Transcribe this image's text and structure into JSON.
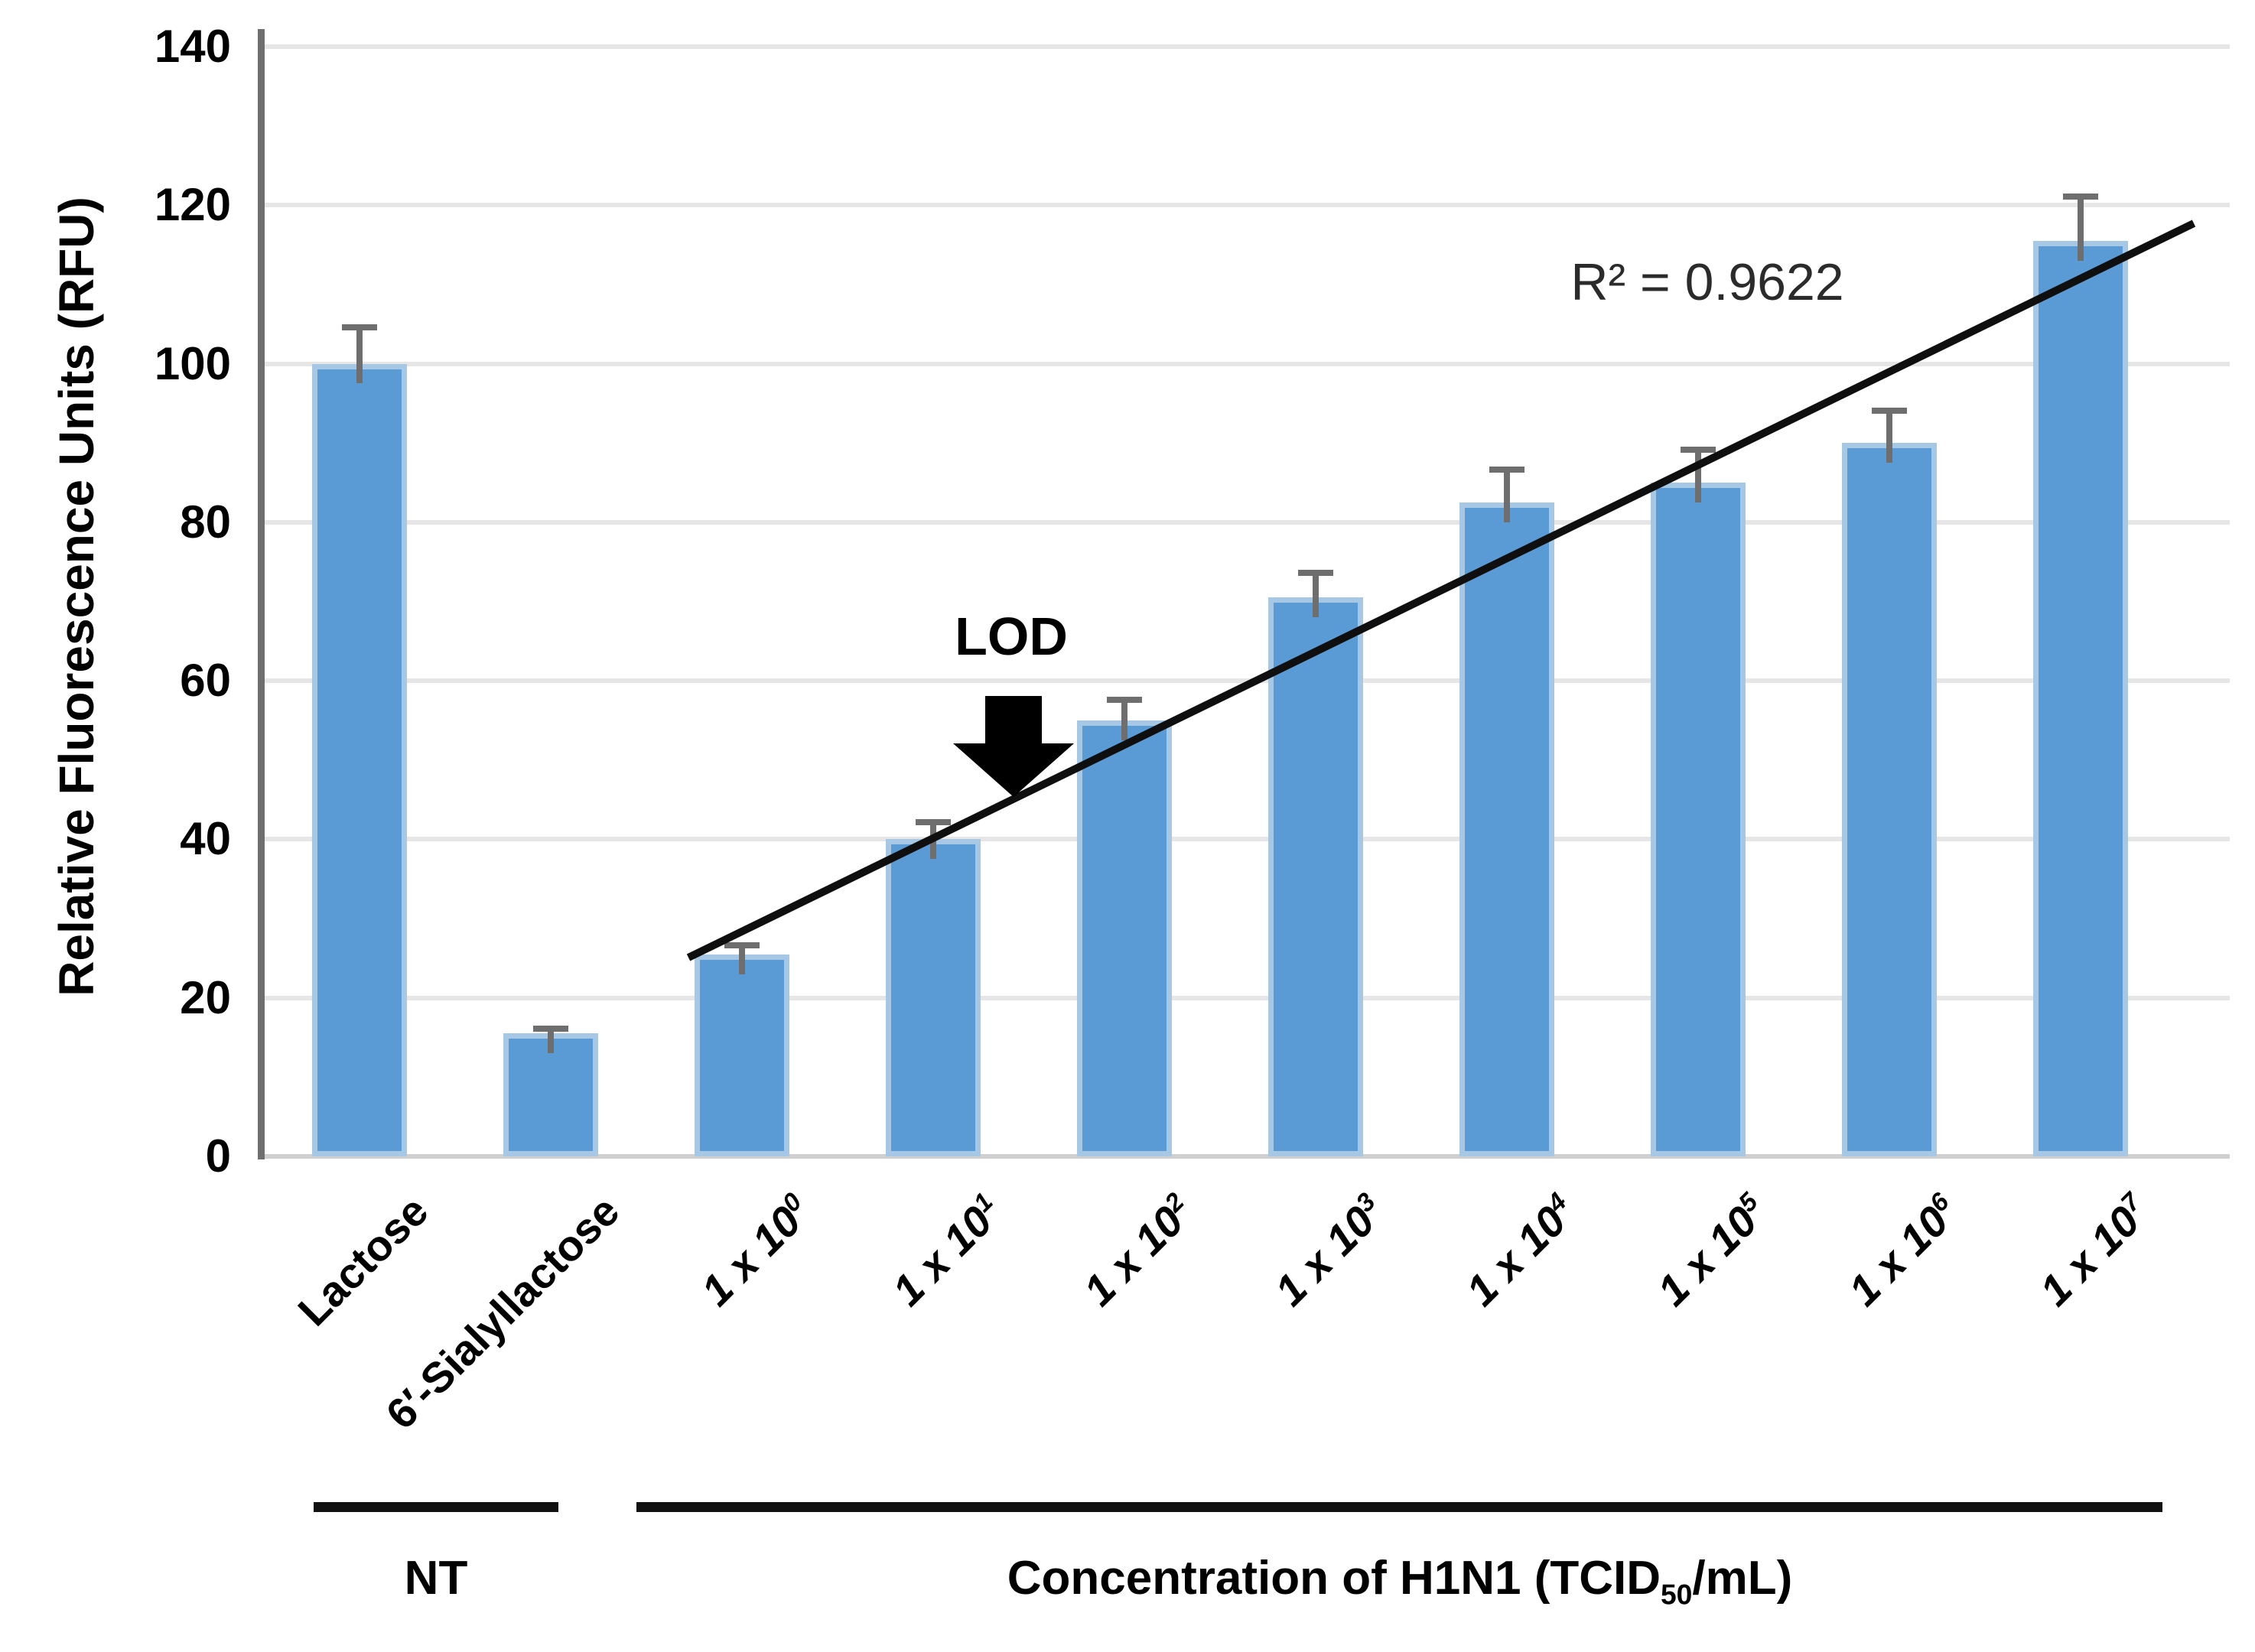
{
  "figure": {
    "background": "#ffffff"
  },
  "chart_data": {
    "type": "bar",
    "title": "",
    "ylabel": "Relative Fluorescence Units (RFU)",
    "xlabel_parts": {
      "pre": "Concentration of H1N1 (TCID",
      "sub": "50",
      "post": "/mL)"
    },
    "ylim": [
      0,
      140
    ],
    "ytick_step": 20,
    "grid": true,
    "legend": false,
    "bar_color": "#5b9bd5",
    "bar_edge_color": "#a6c8e4",
    "error_color": "#6e6e6e",
    "trendline_color": "#0f0f0f",
    "categories": [
      {
        "label": "Lactose",
        "sup": "",
        "italic": false
      },
      {
        "label": "6′-Sialyllactose",
        "sup": "",
        "italic": false
      },
      {
        "label": "1 x 10",
        "sup": "0",
        "italic": true
      },
      {
        "label": "1 x 10",
        "sup": "1",
        "italic": true
      },
      {
        "label": "1 x 10",
        "sup": "2",
        "italic": true
      },
      {
        "label": "1 x 10",
        "sup": "3",
        "italic": true
      },
      {
        "label": "1 x 10",
        "sup": "4",
        "italic": true
      },
      {
        "label": "1 x 10",
        "sup": "5",
        "italic": true
      },
      {
        "label": "1 x 10",
        "sup": "6",
        "italic": true
      },
      {
        "label": "1 x 10",
        "sup": "7",
        "italic": true
      }
    ],
    "values": [
      100,
      15.5,
      25.5,
      40,
      55,
      70.5,
      82.5,
      85,
      90,
      115.5
    ],
    "errors_plus": [
      5,
      1,
      1.5,
      2.5,
      3,
      3.5,
      4.5,
      4.5,
      4.5,
      6
    ],
    "groups": [
      {
        "label": "NT",
        "start": 0,
        "end": 1
      },
      {
        "label": "",
        "use_xlabel_parts": true,
        "start": 2,
        "end": 9
      }
    ],
    "annotations": {
      "r_squared": "R² = 0.9622",
      "lod": "LOD"
    }
  }
}
